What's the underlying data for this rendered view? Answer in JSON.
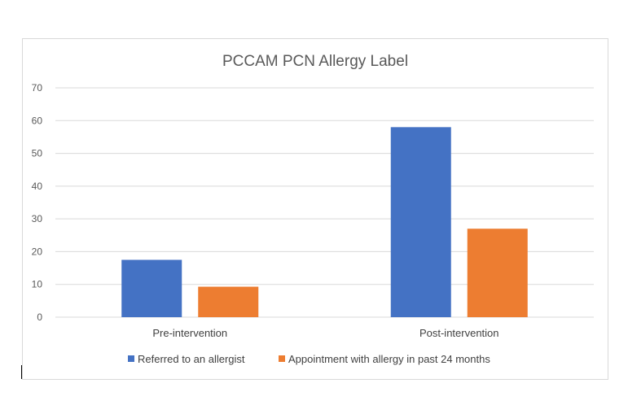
{
  "chart_data": {
    "type": "bar",
    "title": "PCCAM PCN Allergy Label",
    "categories": [
      "Pre-intervention",
      "Post-intervention"
    ],
    "series": [
      {
        "name": "Referred to an allergist",
        "values": [
          17.5,
          58
        ],
        "color": "#4472c4"
      },
      {
        "name": "Appointment with allergy in past 24 months",
        "values": [
          9.3,
          27
        ],
        "color": "#ed7d31"
      }
    ],
    "ylim": [
      0,
      70
    ],
    "yticks": [
      "0",
      "10",
      "20",
      "30",
      "40",
      "50",
      "60",
      "70"
    ],
    "grid": true,
    "legend": "bottom"
  }
}
